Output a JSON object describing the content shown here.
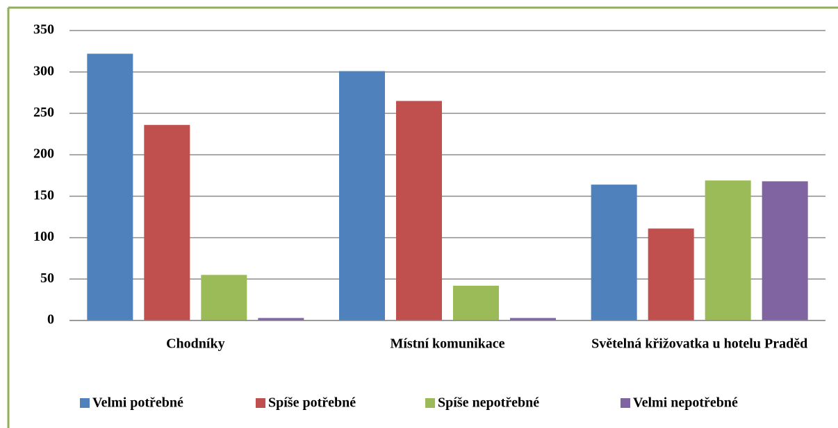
{
  "chart_data": {
    "type": "bar",
    "categories": [
      "Chodníky",
      "Místní komunikace",
      "Světelná křižovatka u hotelu Praděd"
    ],
    "series": [
      {
        "name": "Velmi potřebné",
        "color": "#4f81bd",
        "values": [
          322,
          301,
          164
        ]
      },
      {
        "name": "Spíše potřebné",
        "color": "#c0504d",
        "values": [
          236,
          265,
          111
        ]
      },
      {
        "name": "Spíše nepotřebné",
        "color": "#9bbb59",
        "values": [
          55,
          42,
          169
        ]
      },
      {
        "name": "Velmi nepotřebné",
        "color": "#8064a2",
        "values": [
          3,
          3,
          168
        ]
      }
    ],
    "ylim": [
      0,
      350
    ],
    "yticks": [
      0,
      50,
      100,
      150,
      200,
      250,
      300,
      350
    ],
    "grid": true,
    "legend": "bottom"
  }
}
